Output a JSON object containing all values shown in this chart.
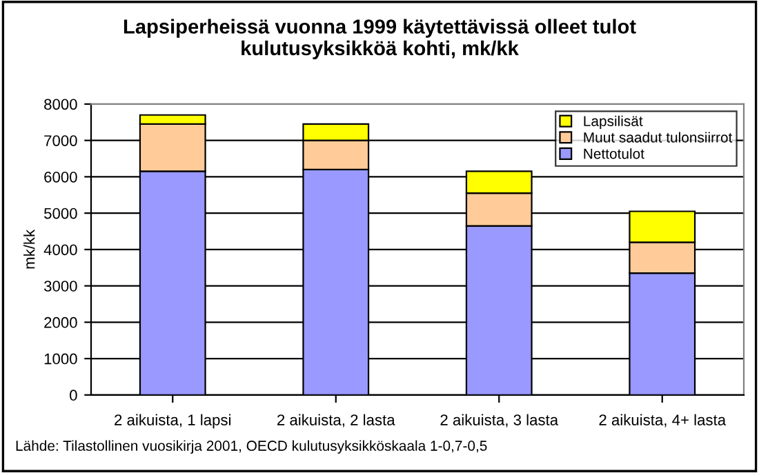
{
  "chart_data": {
    "type": "bar",
    "stacked": true,
    "title": "Lapsiperheissä vuonna 1999 käytettävissä olleet tulot\nkulutusyksikköä kohti, mk/kk",
    "ylabel": "mk/kk",
    "categories": [
      "2 aikuista, 1 lapsi",
      "2 aikuista, 2 lasta",
      "2 aikuista, 3 lasta",
      "2 aikuista, 4+ lasta"
    ],
    "series": [
      {
        "name": "Nettotulot",
        "color": "#9999ff",
        "values": [
          6150,
          6200,
          4650,
          3350
        ]
      },
      {
        "name": "Muut saadut tulonsiirrot",
        "color": "#ffcc99",
        "values": [
          1300,
          800,
          900,
          850
        ]
      },
      {
        "name": "Lapsilisät",
        "color": "#ffff00",
        "values": [
          250,
          450,
          600,
          850
        ]
      }
    ],
    "ylim": [
      0,
      8000
    ],
    "yticks": [
      0,
      1000,
      2000,
      3000,
      4000,
      5000,
      6000,
      7000,
      8000
    ],
    "grid": "y",
    "legend": "top right",
    "annotations": [
      "Lähde: Tilastollinen vuosikirja 2001, OECD kulutusyksikköskaala 1-0,7-0,5"
    ]
  }
}
